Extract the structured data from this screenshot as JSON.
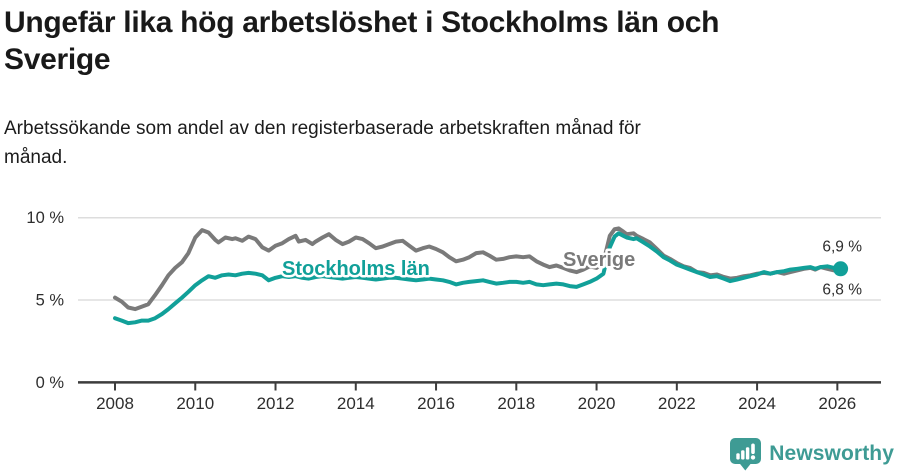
{
  "header": {
    "title": "Ungefär lika hög arbetslöshet i Stockholms län och\nSverige",
    "subtitle": "Arbetssökande som andel av den registerbaserade arbetskraften månad för\nmånad."
  },
  "footer": {
    "brand": "Newsworthy"
  },
  "colors": {
    "stockholm_line": "#11A099",
    "sverige_line": "#7A7A7A",
    "grid": "#DDDDDD",
    "axis": "#3C3C3C",
    "tick_text": "#2E2E2E",
    "title_text": "#191919",
    "brand_teal": "#3E9B94"
  },
  "chart_data": {
    "type": "line",
    "title": "Ungefär lika hög arbetslöshet i Stockholms län och Sverige",
    "subtitle": "Arbetssökande som andel av den registerbaserade arbetskraften månad för månad.",
    "xlabel": "",
    "ylabel": "",
    "ylim": [
      0,
      10
    ],
    "xlim": [
      2007.1,
      2027.1
    ],
    "grid": "horizontal gridlines at 5% and 10%, dark baseline at 0%",
    "legend_position": "inline labels on lines; end-value labels at right",
    "yticks": [
      {
        "value": 10,
        "label": "10 %"
      },
      {
        "value": 5,
        "label": "5 %"
      },
      {
        "value": 0,
        "label": "0 %"
      }
    ],
    "xticks": [
      {
        "value": 2008,
        "label": "2008"
      },
      {
        "value": 2010,
        "label": "2010"
      },
      {
        "value": 2012,
        "label": "2012"
      },
      {
        "value": 2014,
        "label": "2014"
      },
      {
        "value": 2016,
        "label": "2016"
      },
      {
        "value": 2018,
        "label": "2018"
      },
      {
        "value": 2020,
        "label": "2020"
      },
      {
        "value": 2022,
        "label": "2022"
      },
      {
        "value": 2024,
        "label": "2024"
      },
      {
        "value": 2026,
        "label": "2026"
      }
    ],
    "series": [
      {
        "id": "sverige",
        "name": "Sverige",
        "color": "#7A7A7A",
        "end_label": "6,8 %",
        "end_value": 6.8,
        "end_dot_r": 5,
        "points": [
          [
            2008.0,
            5.15
          ],
          [
            2008.17,
            4.9
          ],
          [
            2008.33,
            4.55
          ],
          [
            2008.5,
            4.45
          ],
          [
            2008.67,
            4.6
          ],
          [
            2008.83,
            4.75
          ],
          [
            2009.0,
            5.3
          ],
          [
            2009.17,
            5.9
          ],
          [
            2009.33,
            6.5
          ],
          [
            2009.5,
            6.95
          ],
          [
            2009.67,
            7.3
          ],
          [
            2009.83,
            7.85
          ],
          [
            2010.0,
            8.8
          ],
          [
            2010.17,
            9.25
          ],
          [
            2010.33,
            9.1
          ],
          [
            2010.5,
            8.65
          ],
          [
            2010.58,
            8.5
          ],
          [
            2010.75,
            8.8
          ],
          [
            2010.92,
            8.7
          ],
          [
            2011.0,
            8.75
          ],
          [
            2011.17,
            8.6
          ],
          [
            2011.33,
            8.85
          ],
          [
            2011.5,
            8.7
          ],
          [
            2011.67,
            8.2
          ],
          [
            2011.83,
            8.0
          ],
          [
            2012.0,
            8.3
          ],
          [
            2012.17,
            8.45
          ],
          [
            2012.33,
            8.7
          ],
          [
            2012.5,
            8.9
          ],
          [
            2012.58,
            8.55
          ],
          [
            2012.75,
            8.65
          ],
          [
            2012.92,
            8.4
          ],
          [
            2013.0,
            8.55
          ],
          [
            2013.17,
            8.8
          ],
          [
            2013.33,
            9.0
          ],
          [
            2013.5,
            8.65
          ],
          [
            2013.67,
            8.4
          ],
          [
            2013.83,
            8.55
          ],
          [
            2014.0,
            8.8
          ],
          [
            2014.17,
            8.7
          ],
          [
            2014.33,
            8.45
          ],
          [
            2014.5,
            8.15
          ],
          [
            2014.67,
            8.25
          ],
          [
            2014.83,
            8.4
          ],
          [
            2015.0,
            8.55
          ],
          [
            2015.17,
            8.6
          ],
          [
            2015.33,
            8.3
          ],
          [
            2015.5,
            8.0
          ],
          [
            2015.67,
            8.15
          ],
          [
            2015.83,
            8.25
          ],
          [
            2016.0,
            8.1
          ],
          [
            2016.17,
            7.9
          ],
          [
            2016.33,
            7.6
          ],
          [
            2016.5,
            7.35
          ],
          [
            2016.67,
            7.45
          ],
          [
            2016.83,
            7.6
          ],
          [
            2017.0,
            7.85
          ],
          [
            2017.17,
            7.9
          ],
          [
            2017.33,
            7.7
          ],
          [
            2017.5,
            7.45
          ],
          [
            2017.67,
            7.5
          ],
          [
            2017.83,
            7.6
          ],
          [
            2018.0,
            7.65
          ],
          [
            2018.17,
            7.6
          ],
          [
            2018.33,
            7.65
          ],
          [
            2018.5,
            7.35
          ],
          [
            2018.67,
            7.15
          ],
          [
            2018.83,
            7.0
          ],
          [
            2019.0,
            7.1
          ],
          [
            2019.17,
            6.95
          ],
          [
            2019.33,
            6.8
          ],
          [
            2019.5,
            6.7
          ],
          [
            2019.67,
            6.85
          ],
          [
            2019.83,
            7.05
          ],
          [
            2020.0,
            6.95
          ],
          [
            2020.17,
            7.3
          ],
          [
            2020.33,
            8.9
          ],
          [
            2020.45,
            9.3
          ],
          [
            2020.55,
            9.35
          ],
          [
            2020.67,
            9.15
          ],
          [
            2020.75,
            9.0
          ],
          [
            2020.92,
            9.05
          ],
          [
            2021.0,
            8.9
          ],
          [
            2021.17,
            8.7
          ],
          [
            2021.33,
            8.5
          ],
          [
            2021.5,
            8.1
          ],
          [
            2021.67,
            7.7
          ],
          [
            2021.83,
            7.5
          ],
          [
            2022.0,
            7.25
          ],
          [
            2022.17,
            7.05
          ],
          [
            2022.33,
            6.95
          ],
          [
            2022.5,
            6.7
          ],
          [
            2022.67,
            6.65
          ],
          [
            2022.83,
            6.5
          ],
          [
            2023.0,
            6.55
          ],
          [
            2023.17,
            6.4
          ],
          [
            2023.33,
            6.3
          ],
          [
            2023.5,
            6.35
          ],
          [
            2023.67,
            6.45
          ],
          [
            2023.83,
            6.5
          ],
          [
            2024.0,
            6.6
          ],
          [
            2024.17,
            6.65
          ],
          [
            2024.33,
            6.6
          ],
          [
            2024.5,
            6.7
          ],
          [
            2024.67,
            6.6
          ],
          [
            2024.83,
            6.7
          ],
          [
            2025.0,
            6.8
          ],
          [
            2025.17,
            6.9
          ],
          [
            2025.33,
            6.95
          ],
          [
            2025.45,
            6.85
          ],
          [
            2025.58,
            7.0
          ],
          [
            2025.75,
            6.9
          ],
          [
            2025.92,
            6.8
          ],
          [
            2026.08,
            6.8
          ]
        ]
      },
      {
        "id": "stockholms-lan",
        "name": "Stockholms län",
        "color": "#11A099",
        "end_label": "6,9 %",
        "end_value": 6.9,
        "end_dot_r": 7.5,
        "points": [
          [
            2008.0,
            3.9
          ],
          [
            2008.17,
            3.75
          ],
          [
            2008.33,
            3.6
          ],
          [
            2008.5,
            3.65
          ],
          [
            2008.67,
            3.75
          ],
          [
            2008.83,
            3.75
          ],
          [
            2009.0,
            3.9
          ],
          [
            2009.17,
            4.15
          ],
          [
            2009.33,
            4.45
          ],
          [
            2009.5,
            4.8
          ],
          [
            2009.67,
            5.15
          ],
          [
            2009.83,
            5.5
          ],
          [
            2010.0,
            5.9
          ],
          [
            2010.17,
            6.2
          ],
          [
            2010.33,
            6.45
          ],
          [
            2010.5,
            6.35
          ],
          [
            2010.67,
            6.5
          ],
          [
            2010.83,
            6.55
          ],
          [
            2011.0,
            6.5
          ],
          [
            2011.17,
            6.6
          ],
          [
            2011.33,
            6.65
          ],
          [
            2011.5,
            6.6
          ],
          [
            2011.67,
            6.5
          ],
          [
            2011.83,
            6.2
          ],
          [
            2012.0,
            6.35
          ],
          [
            2012.17,
            6.45
          ],
          [
            2012.33,
            6.4
          ],
          [
            2012.5,
            6.45
          ],
          [
            2012.67,
            6.35
          ],
          [
            2012.83,
            6.3
          ],
          [
            2013.0,
            6.4
          ],
          [
            2013.17,
            6.45
          ],
          [
            2013.33,
            6.4
          ],
          [
            2013.5,
            6.35
          ],
          [
            2013.67,
            6.3
          ],
          [
            2013.83,
            6.35
          ],
          [
            2014.0,
            6.4
          ],
          [
            2014.17,
            6.35
          ],
          [
            2014.33,
            6.3
          ],
          [
            2014.5,
            6.25
          ],
          [
            2014.67,
            6.3
          ],
          [
            2014.83,
            6.35
          ],
          [
            2015.0,
            6.35
          ],
          [
            2015.17,
            6.3
          ],
          [
            2015.33,
            6.25
          ],
          [
            2015.5,
            6.2
          ],
          [
            2015.67,
            6.25
          ],
          [
            2015.83,
            6.3
          ],
          [
            2016.0,
            6.25
          ],
          [
            2016.17,
            6.2
          ],
          [
            2016.33,
            6.1
          ],
          [
            2016.5,
            5.95
          ],
          [
            2016.67,
            6.05
          ],
          [
            2016.83,
            6.1
          ],
          [
            2017.0,
            6.15
          ],
          [
            2017.17,
            6.2
          ],
          [
            2017.33,
            6.1
          ],
          [
            2017.5,
            6.0
          ],
          [
            2017.67,
            6.05
          ],
          [
            2017.83,
            6.1
          ],
          [
            2018.0,
            6.1
          ],
          [
            2018.17,
            6.05
          ],
          [
            2018.33,
            6.1
          ],
          [
            2018.5,
            5.95
          ],
          [
            2018.67,
            5.9
          ],
          [
            2018.83,
            5.95
          ],
          [
            2019.0,
            6.0
          ],
          [
            2019.17,
            5.95
          ],
          [
            2019.33,
            5.85
          ],
          [
            2019.5,
            5.8
          ],
          [
            2019.67,
            5.95
          ],
          [
            2019.83,
            6.1
          ],
          [
            2020.0,
            6.3
          ],
          [
            2020.17,
            6.6
          ],
          [
            2020.33,
            8.2
          ],
          [
            2020.45,
            8.85
          ],
          [
            2020.55,
            9.05
          ],
          [
            2020.67,
            8.9
          ],
          [
            2020.75,
            8.8
          ],
          [
            2020.92,
            8.7
          ],
          [
            2021.0,
            8.75
          ],
          [
            2021.17,
            8.5
          ],
          [
            2021.33,
            8.25
          ],
          [
            2021.5,
            7.95
          ],
          [
            2021.67,
            7.6
          ],
          [
            2021.83,
            7.4
          ],
          [
            2022.0,
            7.15
          ],
          [
            2022.17,
            7.0
          ],
          [
            2022.33,
            6.85
          ],
          [
            2022.5,
            6.7
          ],
          [
            2022.67,
            6.55
          ],
          [
            2022.83,
            6.4
          ],
          [
            2023.0,
            6.45
          ],
          [
            2023.17,
            6.3
          ],
          [
            2023.33,
            6.15
          ],
          [
            2023.5,
            6.25
          ],
          [
            2023.67,
            6.35
          ],
          [
            2023.83,
            6.45
          ],
          [
            2024.0,
            6.55
          ],
          [
            2024.17,
            6.7
          ],
          [
            2024.33,
            6.6
          ],
          [
            2024.5,
            6.7
          ],
          [
            2024.67,
            6.75
          ],
          [
            2024.83,
            6.85
          ],
          [
            2025.0,
            6.9
          ],
          [
            2025.17,
            6.95
          ],
          [
            2025.33,
            7.0
          ],
          [
            2025.45,
            6.9
          ],
          [
            2025.58,
            7.0
          ],
          [
            2025.75,
            7.05
          ],
          [
            2025.92,
            6.95
          ],
          [
            2026.08,
            6.9
          ]
        ]
      }
    ]
  }
}
